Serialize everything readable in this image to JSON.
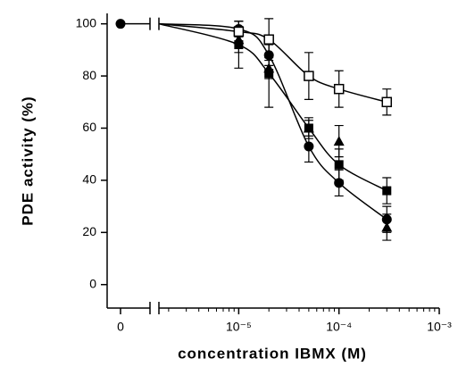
{
  "chart_data": {
    "type": "scatter",
    "xlabel": "concentration IBMX (M)",
    "ylabel": "PDE activity (%)",
    "xscale": "log",
    "axis_break": true,
    "x": [
      0,
      1e-05,
      2e-05,
      5e-05,
      0.0001,
      0.0003
    ],
    "xlim": [
      1.6e-06,
      0.001
    ],
    "xticks": [
      0,
      {
        "value": 1e-05,
        "label": "10⁻⁵"
      },
      {
        "value": 0.0001,
        "label": "10⁻⁴"
      },
      {
        "value": 0.001,
        "label": "10⁻³"
      }
    ],
    "ylim": [
      -9,
      104
    ],
    "yticks": [
      0,
      20,
      40,
      60,
      80,
      100
    ],
    "series": [
      {
        "marker": "circle",
        "color": "#000000",
        "fit": true,
        "values": [
          100,
          98,
          88,
          53,
          39,
          25
        ],
        "errors": [
          null,
          3,
          4,
          6,
          5,
          5
        ]
      },
      {
        "marker": "square",
        "color": "#000000",
        "fit": true,
        "values": [
          null,
          92,
          81,
          60,
          46,
          36
        ],
        "errors": [
          null,
          9,
          13,
          3,
          6,
          5
        ]
      },
      {
        "marker": "triangle",
        "color": "#000000",
        "fit": false,
        "values": [
          null,
          94,
          83,
          60,
          55,
          22
        ],
        "errors": [
          null,
          5,
          4,
          4,
          6,
          5
        ]
      },
      {
        "marker": "open-square",
        "color": "#000000",
        "fit": true,
        "values": [
          null,
          97,
          94,
          80,
          75,
          70
        ],
        "errors": [
          null,
          4,
          8,
          9,
          7,
          5
        ]
      }
    ]
  }
}
